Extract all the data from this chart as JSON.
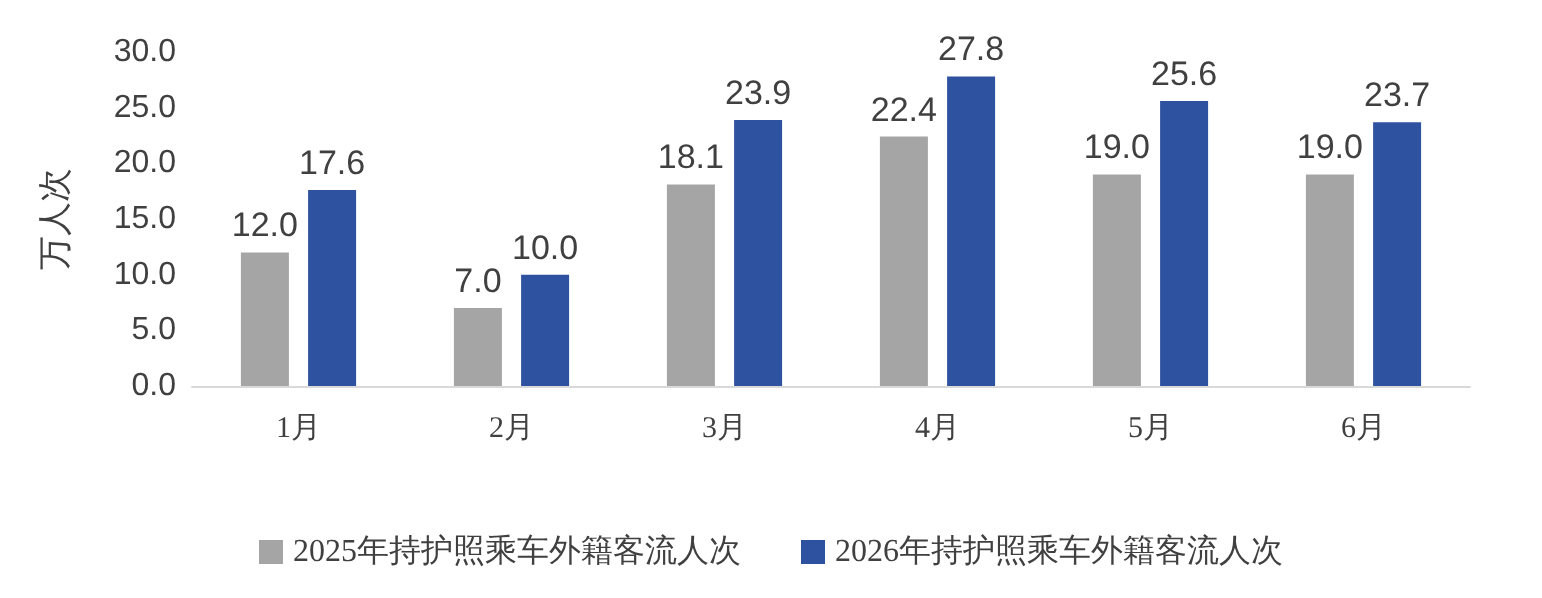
{
  "chart_data": {
    "type": "bar",
    "ylabel": "万人次",
    "categories": [
      "1月",
      "2月",
      "3月",
      "4月",
      "5月",
      "6月"
    ],
    "series": [
      {
        "name": "2025年持护照乘车外籍客流人次",
        "color": "#a5a5a5",
        "values": [
          12.0,
          7.0,
          18.1,
          22.4,
          19.0,
          19.0
        ],
        "value_labels": [
          "12.0",
          "7.0",
          "18.1",
          "22.4",
          "19.0",
          "19.0"
        ]
      },
      {
        "name": "2026年持护照乘车外籍客流人次",
        "color": "#2f52a0",
        "values": [
          17.6,
          10.0,
          23.9,
          27.8,
          25.6,
          23.7
        ],
        "value_labels": [
          "17.6",
          "10.0",
          "23.9",
          "27.8",
          "25.6",
          "23.7"
        ]
      }
    ],
    "ylim": [
      0,
      30
    ],
    "yticks": [
      {
        "value": 0,
        "label": "0.0"
      },
      {
        "value": 5,
        "label": "5.0"
      },
      {
        "value": 10,
        "label": "10.0"
      },
      {
        "value": 15,
        "label": "15.0"
      },
      {
        "value": 20,
        "label": "20.0"
      },
      {
        "value": 25,
        "label": "25.0"
      },
      {
        "value": 30,
        "label": "30.0"
      }
    ],
    "grid": false,
    "legend": "bottom"
  }
}
